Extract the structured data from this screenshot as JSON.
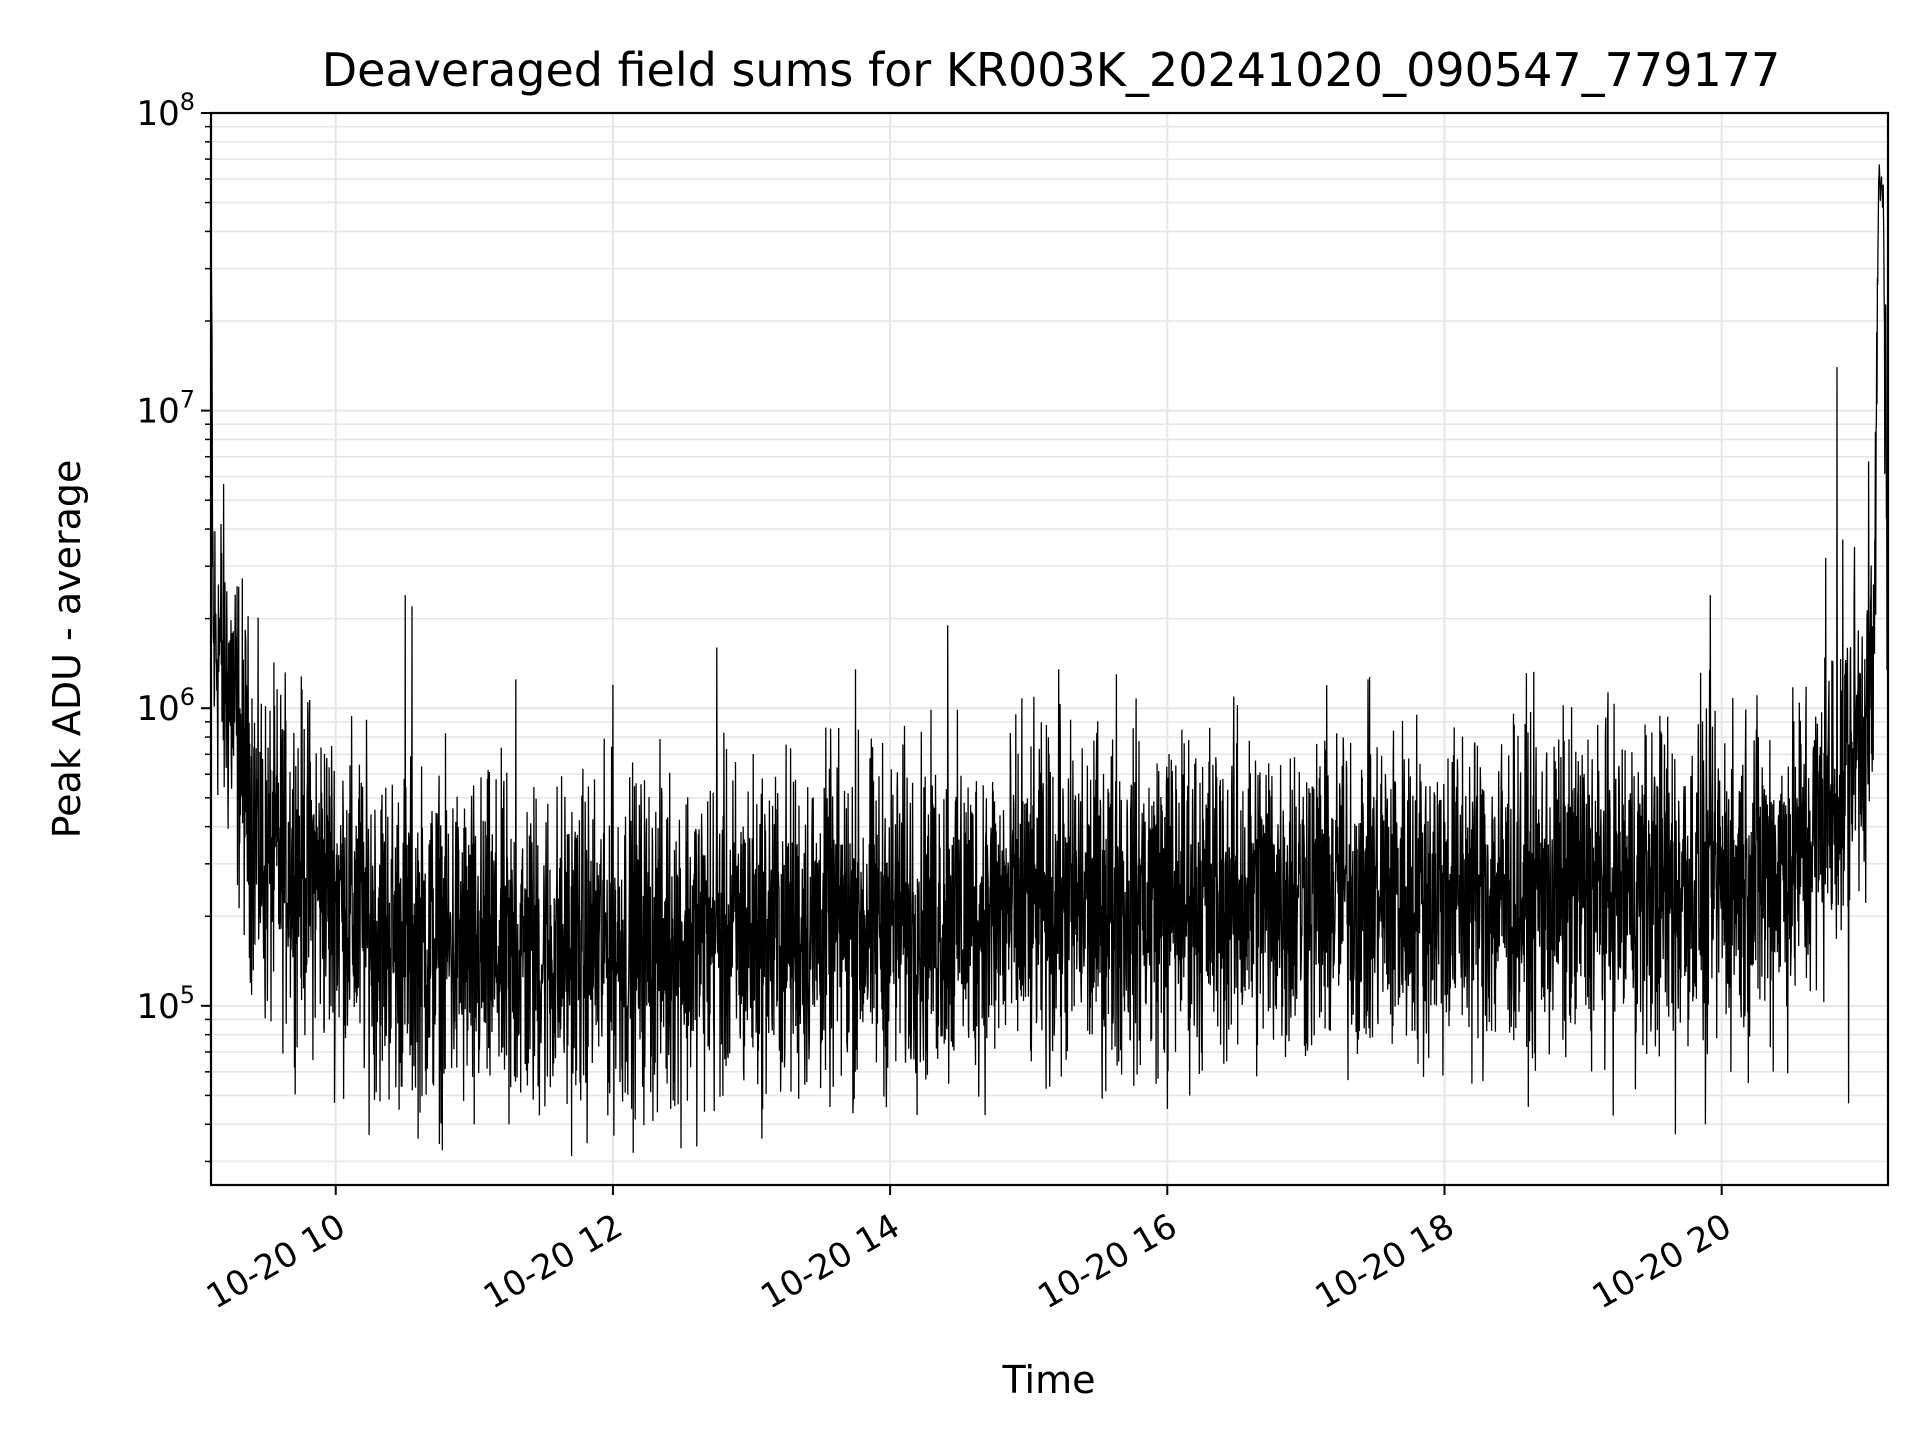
{
  "chart_data": {
    "type": "line",
    "title": "Deaveraged field sums for KR003K_20241020_090547_779177",
    "xlabel": "Time",
    "ylabel": "Peak ADU - average",
    "yscale": "log",
    "xlim": [
      "2024-10-20 09:06",
      "2024-10-20 21:12"
    ],
    "ylim": [
      25000,
      100000000
    ],
    "grid": true,
    "line_color": "#000000",
    "grid_color": "#e6e6e6",
    "x_ticks": [
      {
        "value": "2024-10-20 10:00",
        "label": "10-20 10"
      },
      {
        "value": "2024-10-20 12:00",
        "label": "10-20 12"
      },
      {
        "value": "2024-10-20 14:00",
        "label": "10-20 14"
      },
      {
        "value": "2024-10-20 16:00",
        "label": "10-20 16"
      },
      {
        "value": "2024-10-20 18:00",
        "label": "10-20 18"
      },
      {
        "value": "2024-10-20 20:00",
        "label": "10-20 20"
      }
    ],
    "y_ticks": [
      {
        "value": 100000,
        "base": "10",
        "exp": "5"
      },
      {
        "value": 1000000,
        "base": "10",
        "exp": "6"
      },
      {
        "value": 10000000,
        "base": "10",
        "exp": "7"
      },
      {
        "value": 100000000,
        "base": "10",
        "exp": "8"
      }
    ],
    "series": [
      {
        "x": [
          "2024-10-20 09:06",
          "2024-10-20 09:07",
          "2024-10-20 09:08",
          "2024-10-20 09:10",
          "2024-10-20 09:12",
          "2024-10-20 09:15",
          "2024-10-20 09:18",
          "2024-10-20 09:21",
          "2024-10-20 09:24",
          "2024-10-20 09:27",
          "2024-10-20 09:30",
          "2024-10-20 09:33",
          "2024-10-20 09:36",
          "2024-10-20 09:40",
          "2024-10-20 09:45",
          "2024-10-20 09:50",
          "2024-10-20 09:55",
          "2024-10-20 10:00",
          "2024-10-20 10:10",
          "2024-10-20 10:20",
          "2024-10-20 10:30",
          "2024-10-20 10:40",
          "2024-10-20 10:50",
          "2024-10-20 11:00",
          "2024-10-20 11:15",
          "2024-10-20 11:30",
          "2024-10-20 11:45",
          "2024-10-20 12:00",
          "2024-10-20 12:30",
          "2024-10-20 13:00",
          "2024-10-20 13:30",
          "2024-10-20 14:00",
          "2024-10-20 14:30",
          "2024-10-20 15:00",
          "2024-10-20 15:30",
          "2024-10-20 16:00",
          "2024-10-20 16:30",
          "2024-10-20 17:00",
          "2024-10-20 17:30",
          "2024-10-20 18:00",
          "2024-10-20 18:30",
          "2024-10-20 19:00",
          "2024-10-20 19:30",
          "2024-10-20 20:00",
          "2024-10-20 20:15",
          "2024-10-20 20:30",
          "2024-10-20 20:40",
          "2024-10-20 20:50",
          "2024-10-20 20:55",
          "2024-10-20 21:00",
          "2024-10-20 21:02",
          "2024-10-20 21:04",
          "2024-10-20 21:06",
          "2024-10-20 21:08",
          "2024-10-20 21:10",
          "2024-10-20 21:12"
        ],
        "y": [
          45000000,
          1500000,
          1700000,
          1600000,
          1300000,
          1100000,
          800000,
          600000,
          450000,
          350000,
          300000,
          310000,
          320000,
          310000,
          300000,
          280000,
          260000,
          240000,
          200000,
          180000,
          170000,
          160000,
          160000,
          150000,
          150000,
          150000,
          155000,
          160000,
          165000,
          175000,
          185000,
          195000,
          200000,
          210000,
          220000,
          230000,
          235000,
          240000,
          240000,
          240000,
          240000,
          245000,
          250000,
          260000,
          280000,
          300000,
          360000,
          500000,
          700000,
          900000,
          1000000,
          1100000,
          1200000,
          65000000,
          50000000,
          1300000
        ],
        "noise_decades": 0.55
      }
    ],
    "spikes": [
      {
        "x": "2024-10-20 10:30",
        "y": 2400000
      },
      {
        "x": "2024-10-20 10:33",
        "y": 2200000
      },
      {
        "x": "2024-10-20 11:18",
        "y": 1250000
      },
      {
        "x": "2024-10-20 12:00",
        "y": 1200000
      },
      {
        "x": "2024-10-20 12:45",
        "y": 1600000
      },
      {
        "x": "2024-10-20 13:45",
        "y": 1350000
      },
      {
        "x": "2024-10-20 14:25",
        "y": 1900000
      },
      {
        "x": "2024-10-20 14:57",
        "y": 1080000
      },
      {
        "x": "2024-10-20 15:13",
        "y": 1350000
      },
      {
        "x": "2024-10-20 15:38",
        "y": 1300000
      },
      {
        "x": "2024-10-20 19:53",
        "y": 2600000
      },
      {
        "x": "2024-10-20 19:55",
        "y": 2400000
      },
      {
        "x": "2024-10-20 20:45",
        "y": 3200000
      },
      {
        "x": "2024-10-20 20:50",
        "y": 14000000
      },
      {
        "x": "2024-10-20 20:55",
        "y": 3000000
      }
    ],
    "dips": [
      {
        "x": "2024-10-20 11:00",
        "y": 40000
      },
      {
        "x": "2024-10-20 11:15",
        "y": 40000
      },
      {
        "x": "2024-10-20 12:25",
        "y": 45000
      },
      {
        "x": "2024-10-20 16:00",
        "y": 45000
      },
      {
        "x": "2024-10-20 19:40",
        "y": 37000
      },
      {
        "x": "2024-10-20 19:53",
        "y": 40000
      },
      {
        "x": "2024-10-20 20:55",
        "y": 47000
      }
    ]
  }
}
